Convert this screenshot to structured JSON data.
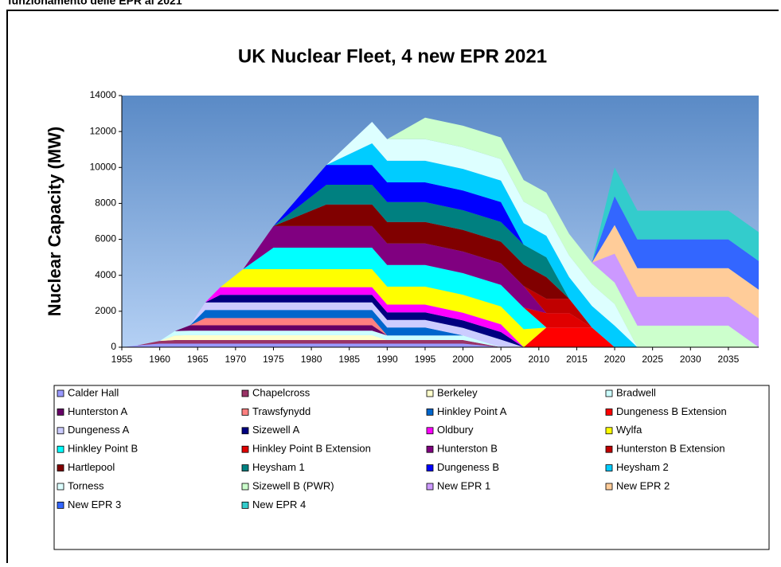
{
  "header": {
    "text": "funzionamento delle EPR al 2021"
  },
  "chart_data": {
    "type": "stacked_area",
    "title": "UK Nuclear Fleet, 4 new EPR 2021",
    "y_label": "Nuclear Capacity (MW)",
    "x": [
      1955,
      1957,
      1960,
      1962,
      1964,
      1966,
      1968,
      1971,
      1975,
      1982,
      1988,
      1990,
      1995,
      2000,
      2005,
      2008,
      2011,
      2014,
      2017,
      2020,
      2023,
      2035,
      2039
    ],
    "xlim": [
      1955,
      2039
    ],
    "xticks": [
      1955,
      1960,
      1965,
      1970,
      1975,
      1980,
      1985,
      1990,
      1995,
      2000,
      2005,
      2010,
      2015,
      2020,
      2025,
      2030,
      2035
    ],
    "ylim": [
      0,
      14000
    ],
    "yticks": [
      0,
      2000,
      4000,
      6000,
      8000,
      10000,
      12000,
      14000
    ],
    "series": [
      {
        "name": "Calder Hall",
        "color": "#9999ff",
        "values": [
          0,
          100,
          200,
          200,
          200,
          200,
          200,
          200,
          200,
          200,
          200,
          200,
          200,
          200,
          0,
          0,
          0,
          0,
          0,
          0,
          0,
          0,
          0
        ]
      },
      {
        "name": "Chapelcross",
        "color": "#993366",
        "values": [
          0,
          0,
          150,
          200,
          200,
          200,
          200,
          200,
          200,
          200,
          200,
          200,
          200,
          200,
          0,
          0,
          0,
          0,
          0,
          0,
          0,
          0,
          0
        ]
      },
      {
        "name": "Berkeley",
        "color": "#ffffcc",
        "values": [
          0,
          0,
          0,
          250,
          270,
          270,
          270,
          270,
          270,
          270,
          270,
          0,
          0,
          0,
          0,
          0,
          0,
          0,
          0,
          0,
          0,
          0,
          0
        ]
      },
      {
        "name": "Bradwell",
        "color": "#ccffff",
        "values": [
          0,
          0,
          0,
          250,
          250,
          250,
          250,
          250,
          250,
          250,
          250,
          250,
          250,
          250,
          0,
          0,
          0,
          0,
          0,
          0,
          0,
          0,
          0
        ]
      },
      {
        "name": "Hunterston A",
        "color": "#660066",
        "values": [
          0,
          0,
          0,
          0,
          300,
          300,
          300,
          300,
          300,
          300,
          300,
          0,
          0,
          0,
          0,
          0,
          0,
          0,
          0,
          0,
          0,
          0,
          0
        ]
      },
      {
        "name": "Trawsfynydd",
        "color": "#ff8080",
        "values": [
          0,
          0,
          0,
          0,
          0,
          400,
          400,
          400,
          400,
          400,
          400,
          0,
          0,
          0,
          0,
          0,
          0,
          0,
          0,
          0,
          0,
          0,
          0
        ]
      },
      {
        "name": "Hinkley Point A",
        "color": "#0066cc",
        "values": [
          0,
          0,
          0,
          0,
          0,
          450,
          450,
          450,
          450,
          450,
          450,
          450,
          450,
          0,
          0,
          0,
          0,
          0,
          0,
          0,
          0,
          0,
          0
        ]
      },
      {
        "name": "Dungeness B Extension",
        "color": "#ff0000",
        "values": [
          0,
          0,
          0,
          0,
          0,
          0,
          0,
          0,
          0,
          0,
          0,
          0,
          0,
          0,
          0,
          0,
          1100,
          1100,
          1100,
          0,
          0,
          0,
          0
        ]
      },
      {
        "name": "Dungeness A",
        "color": "#ccccff",
        "values": [
          0,
          0,
          0,
          0,
          0,
          420,
          420,
          420,
          420,
          420,
          420,
          420,
          420,
          420,
          420,
          0,
          0,
          0,
          0,
          0,
          0,
          0,
          0
        ]
      },
      {
        "name": "Sizewell A",
        "color": "#000080",
        "values": [
          0,
          0,
          0,
          0,
          0,
          0,
          420,
          420,
          420,
          420,
          420,
          420,
          420,
          420,
          420,
          0,
          0,
          0,
          0,
          0,
          0,
          0,
          0
        ]
      },
      {
        "name": "Oldbury",
        "color": "#ff00ff",
        "values": [
          0,
          0,
          0,
          0,
          0,
          0,
          430,
          430,
          430,
          430,
          430,
          430,
          430,
          430,
          430,
          0,
          0,
          0,
          0,
          0,
          0,
          0,
          0
        ]
      },
      {
        "name": "Wylfa",
        "color": "#ffff00",
        "values": [
          0,
          0,
          0,
          0,
          0,
          0,
          0,
          1000,
          1000,
          1000,
          1000,
          1000,
          1000,
          1000,
          1000,
          1000,
          0,
          0,
          0,
          0,
          0,
          0,
          0
        ]
      },
      {
        "name": "Hinkley Point B",
        "color": "#00ffff",
        "values": [
          0,
          0,
          0,
          0,
          0,
          0,
          0,
          0,
          1200,
          1200,
          1200,
          1200,
          1200,
          1200,
          1200,
          1200,
          0,
          0,
          0,
          0,
          0,
          0,
          0
        ]
      },
      {
        "name": "Hinkley Point B Extension",
        "color": "#e00000",
        "values": [
          0,
          0,
          0,
          0,
          0,
          0,
          0,
          0,
          0,
          0,
          0,
          0,
          0,
          0,
          0,
          0,
          800,
          800,
          0,
          0,
          0,
          0,
          0
        ]
      },
      {
        "name": "Hunterston B",
        "color": "#800080",
        "values": [
          0,
          0,
          0,
          0,
          0,
          0,
          0,
          0,
          1200,
          1200,
          1200,
          1200,
          1200,
          1200,
          1200,
          1200,
          0,
          0,
          0,
          0,
          0,
          0,
          0
        ]
      },
      {
        "name": "Hunterston B Extension",
        "color": "#c00000",
        "values": [
          0,
          0,
          0,
          0,
          0,
          0,
          0,
          0,
          0,
          0,
          0,
          0,
          0,
          0,
          0,
          0,
          800,
          800,
          0,
          0,
          0,
          0,
          0
        ]
      },
      {
        "name": "Hartlepool",
        "color": "#800000",
        "values": [
          0,
          0,
          0,
          0,
          0,
          0,
          0,
          0,
          0,
          1200,
          1200,
          1200,
          1200,
          1200,
          1200,
          1200,
          1200,
          0,
          0,
          0,
          0,
          0,
          0
        ]
      },
      {
        "name": "Heysham 1",
        "color": "#008080",
        "values": [
          0,
          0,
          0,
          0,
          0,
          0,
          0,
          0,
          0,
          1100,
          1100,
          1100,
          1100,
          1100,
          1100,
          1100,
          1100,
          0,
          0,
          0,
          0,
          0,
          0
        ]
      },
      {
        "name": "Dungeness B",
        "color": "#0000ff",
        "values": [
          0,
          0,
          0,
          0,
          0,
          0,
          0,
          0,
          0,
          1100,
          1100,
          1100,
          1100,
          1100,
          1100,
          0,
          0,
          0,
          0,
          0,
          0,
          0,
          0
        ]
      },
      {
        "name": "Heysham 2",
        "color": "#00ccff",
        "values": [
          0,
          0,
          0,
          0,
          0,
          0,
          0,
          0,
          0,
          0,
          1200,
          1200,
          1200,
          1200,
          1200,
          1200,
          1200,
          1200,
          1200,
          1200,
          0,
          0,
          0
        ]
      },
      {
        "name": "Torness",
        "color": "#ddffff",
        "values": [
          0,
          0,
          0,
          0,
          0,
          0,
          0,
          0,
          0,
          0,
          1200,
          1200,
          1200,
          1200,
          1200,
          1200,
          1200,
          1200,
          1200,
          1200,
          0,
          0,
          0
        ]
      },
      {
        "name": "Sizewell B (PWR)",
        "color": "#ccffcc",
        "values": [
          0,
          0,
          0,
          0,
          0,
          0,
          0,
          0,
          0,
          0,
          0,
          0,
          1200,
          1200,
          1200,
          1200,
          1200,
          1200,
          1200,
          1200,
          1200,
          1200,
          0
        ]
      },
      {
        "name": "New EPR 1",
        "color": "#cc99ff",
        "values": [
          0,
          0,
          0,
          0,
          0,
          0,
          0,
          0,
          0,
          0,
          0,
          0,
          0,
          0,
          0,
          0,
          0,
          0,
          0,
          1600,
          1600,
          1600,
          1600
        ]
      },
      {
        "name": "New EPR 2",
        "color": "#ffcc99",
        "values": [
          0,
          0,
          0,
          0,
          0,
          0,
          0,
          0,
          0,
          0,
          0,
          0,
          0,
          0,
          0,
          0,
          0,
          0,
          0,
          1600,
          1600,
          1600,
          1600
        ]
      },
      {
        "name": "New EPR 3",
        "color": "#3366ff",
        "values": [
          0,
          0,
          0,
          0,
          0,
          0,
          0,
          0,
          0,
          0,
          0,
          0,
          0,
          0,
          0,
          0,
          0,
          0,
          0,
          1600,
          1600,
          1600,
          1600
        ]
      },
      {
        "name": "New EPR 4",
        "color": "#33cccc",
        "values": [
          0,
          0,
          0,
          0,
          0,
          0,
          0,
          0,
          0,
          0,
          0,
          0,
          0,
          0,
          0,
          0,
          0,
          0,
          0,
          1600,
          1600,
          1600,
          1600
        ]
      }
    ]
  }
}
